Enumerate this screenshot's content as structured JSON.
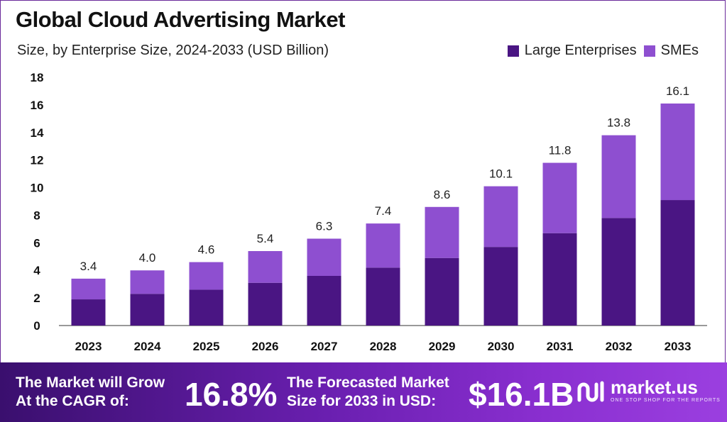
{
  "colors": {
    "large": "#4a1583",
    "smes": "#8e4fd0",
    "axis": "#333333"
  },
  "chart_data": {
    "type": "bar",
    "stacked": true,
    "title": "Global Cloud Advertising Market",
    "subtitle": "Size, by Enterprise Size, 2024-2033 (USD Billion)",
    "categories": [
      "2023",
      "2024",
      "2025",
      "2026",
      "2027",
      "2028",
      "2029",
      "2030",
      "2031",
      "2032",
      "2033"
    ],
    "series": [
      {
        "name": "Large Enterprises",
        "values": [
          1.9,
          2.3,
          2.6,
          3.1,
          3.6,
          4.2,
          4.9,
          5.7,
          6.7,
          7.8,
          9.1
        ]
      },
      {
        "name": "SMEs",
        "values": [
          1.5,
          1.7,
          2.0,
          2.3,
          2.7,
          3.2,
          3.7,
          4.4,
          5.1,
          6.0,
          7.0
        ]
      }
    ],
    "totals": [
      "3.4",
      "4.0",
      "4.6",
      "5.4",
      "6.3",
      "7.4",
      "8.6",
      "10.1",
      "11.8",
      "13.8",
      "16.1"
    ],
    "ylim": [
      0,
      18
    ],
    "yticks": [
      0,
      2,
      4,
      6,
      8,
      10,
      12,
      14,
      16,
      18
    ],
    "legend_position": "top-right",
    "grid": false
  },
  "footer": {
    "cagr_line1": "The Market will Grow",
    "cagr_line2": "At the CAGR of:",
    "cagr_value": "16.8%",
    "forecast_line1": "The Forecasted Market",
    "forecast_line2": "Size for 2033 in USD:",
    "forecast_value": "$16.1B",
    "logo_name": "market.us",
    "logo_tagline": "ONE STOP SHOP FOR THE REPORTS"
  }
}
